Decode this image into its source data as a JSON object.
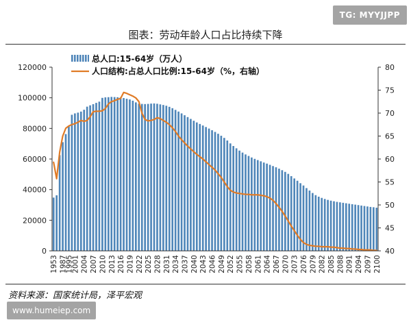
{
  "watermark_top": "TG: MYYJJPP",
  "watermark_bottom": "www.humeiep.com",
  "source_note": "资料来源：国家统计局，泽平宏观",
  "chart_data": {
    "type": "bar+line",
    "title": "图表：劳动年龄人口占比持续下降",
    "legend_position": "top-left",
    "series": [
      {
        "name": "总人口:15-64岁（万人）",
        "type": "bar",
        "axis": "left",
        "color": "#4f86b9",
        "x": [
          1953,
          1964,
          1982,
          1987,
          1990,
          1995,
          2000,
          2001,
          2002,
          2003,
          2004,
          2005,
          2006,
          2007,
          2008,
          2009,
          2010,
          2011,
          2012,
          2013,
          2014,
          2015,
          2016,
          2017,
          2018,
          2019,
          2020,
          2021,
          2022,
          2023,
          2024,
          2025,
          2026,
          2027,
          2028,
          2029,
          2030,
          2031,
          2032,
          2033,
          2034,
          2035,
          2036,
          2037,
          2038,
          2039,
          2040,
          2041,
          2042,
          2043,
          2044,
          2045,
          2046,
          2047,
          2048,
          2049,
          2050,
          2051,
          2052,
          2053,
          2054,
          2055,
          2056,
          2057,
          2058,
          2059,
          2060,
          2061,
          2062,
          2063,
          2064,
          2065,
          2066,
          2067,
          2068,
          2069,
          2070,
          2071,
          2072,
          2073,
          2074,
          2075,
          2076,
          2077,
          2078,
          2079,
          2080,
          2081,
          2082,
          2083,
          2084,
          2085,
          2086,
          2087,
          2088,
          2089,
          2090,
          2091,
          2092,
          2093,
          2094,
          2095,
          2096,
          2097,
          2098,
          2099,
          2100
        ],
        "values": [
          34800,
          36300,
          62500,
          71000,
          76300,
          81400,
          88900,
          89800,
          90300,
          90980,
          92180,
          94200,
          95070,
          95830,
          96680,
          97480,
          99940,
          100280,
          100400,
          100580,
          100470,
          100360,
          100260,
          99830,
          99360,
          98900,
          98100,
          97000,
          96100,
          96000,
          95900,
          96000,
          96200,
          96300,
          96100,
          95700,
          95300,
          94800,
          94100,
          93200,
          92100,
          91000,
          89800,
          88600,
          87400,
          86200,
          85000,
          83900,
          82900,
          81900,
          80900,
          79900,
          78800,
          77700,
          76500,
          75200,
          73800,
          72100,
          70200,
          68500,
          67000,
          65500,
          64200,
          63000,
          62000,
          61000,
          60100,
          59300,
          58500,
          57700,
          57000,
          56200,
          55400,
          54600,
          53700,
          52700,
          51600,
          50300,
          48800,
          47300,
          45800,
          44200,
          42700,
          41000,
          39400,
          37800,
          36400,
          35400,
          34600,
          33900,
          33300,
          32800,
          32400,
          32000,
          31700,
          31400,
          31100,
          30800,
          30500,
          30200,
          29900,
          29600,
          29300,
          29000,
          28700,
          28500,
          28200
        ]
      },
      {
        "name": "人口结构:占总人口比例:15-64岁（%，右轴）",
        "type": "line",
        "axis": "right",
        "color": "#e07b26",
        "x": [
          1953,
          1964,
          1982,
          1987,
          1990,
          1995,
          2000,
          2001,
          2002,
          2003,
          2004,
          2005,
          2006,
          2007,
          2008,
          2009,
          2010,
          2011,
          2012,
          2013,
          2014,
          2015,
          2016,
          2017,
          2018,
          2019,
          2020,
          2021,
          2022,
          2023,
          2024,
          2025,
          2026,
          2027,
          2028,
          2029,
          2030,
          2031,
          2032,
          2033,
          2034,
          2035,
          2036,
          2037,
          2038,
          2039,
          2040,
          2041,
          2042,
          2043,
          2044,
          2045,
          2046,
          2047,
          2048,
          2049,
          2050,
          2051,
          2052,
          2053,
          2054,
          2055,
          2056,
          2057,
          2058,
          2059,
          2060,
          2061,
          2062,
          2063,
          2064,
          2065,
          2066,
          2067,
          2068,
          2069,
          2070,
          2071,
          2072,
          2073,
          2074,
          2075,
          2076,
          2077,
          2078,
          2079,
          2080,
          2081,
          2082,
          2083,
          2084,
          2085,
          2086,
          2087,
          2088,
          2089,
          2090,
          2091,
          2092,
          2093,
          2094,
          2095,
          2096,
          2097,
          2098,
          2099,
          2100
        ],
        "values": [
          59.3,
          55.7,
          61.5,
          65.0,
          66.7,
          67.2,
          67.5,
          67.7,
          68.0,
          68.4,
          68.2,
          68.4,
          69.2,
          70.3,
          70.4,
          70.4,
          70.5,
          71.0,
          72.0,
          72.5,
          72.7,
          73.0,
          73.2,
          74.5,
          74.3,
          74.0,
          73.7,
          73.3,
          72.5,
          70.0,
          68.6,
          68.3,
          68.4,
          68.6,
          69.0,
          68.8,
          68.4,
          68.0,
          67.5,
          66.8,
          66.0,
          65.0,
          64.2,
          63.5,
          62.8,
          62.2,
          61.6,
          61.0,
          60.5,
          60.0,
          59.4,
          58.8,
          58.2,
          57.6,
          56.8,
          56.0,
          55.0,
          54.0,
          53.2,
          52.8,
          52.6,
          52.5,
          52.4,
          52.3,
          52.3,
          52.2,
          52.2,
          52.2,
          52.1,
          52.0,
          51.8,
          51.5,
          51.0,
          50.3,
          49.5,
          48.6,
          47.6,
          46.5,
          45.4,
          44.4,
          43.4,
          42.5,
          41.8,
          41.4,
          41.2,
          41.1,
          41.0,
          41.0,
          40.9,
          40.9,
          40.9,
          40.8,
          40.8,
          40.7,
          40.6,
          40.6,
          40.5,
          40.5,
          40.4,
          40.4,
          40.3,
          40.3,
          40.2,
          40.2,
          40.2,
          40.1,
          40.1
        ]
      }
    ],
    "x_tick_labels": [
      "1953",
      "1987",
      "1995",
      "1998",
      "2001",
      "2004",
      "2007",
      "2010",
      "2013",
      "2016",
      "2019",
      "2022",
      "2025",
      "2028",
      "2031",
      "2034",
      "2037",
      "2040",
      "2043",
      "2046",
      "2049",
      "2052",
      "2055",
      "2058",
      "2061",
      "2064",
      "2067",
      "2070",
      "2073",
      "2076",
      "2079",
      "2082",
      "2085",
      "2088",
      "2091",
      "2094",
      "2097",
      "2100"
    ],
    "y_left": {
      "ylim": [
        0,
        120000
      ],
      "ticks": [
        "0",
        "20000",
        "40000",
        "60000",
        "80000",
        "100000",
        "120000"
      ]
    },
    "y_right": {
      "ylim": [
        40,
        80
      ],
      "ticks": [
        "40",
        "45",
        "50",
        "55",
        "60",
        "65",
        "70",
        "75",
        "80"
      ]
    }
  }
}
